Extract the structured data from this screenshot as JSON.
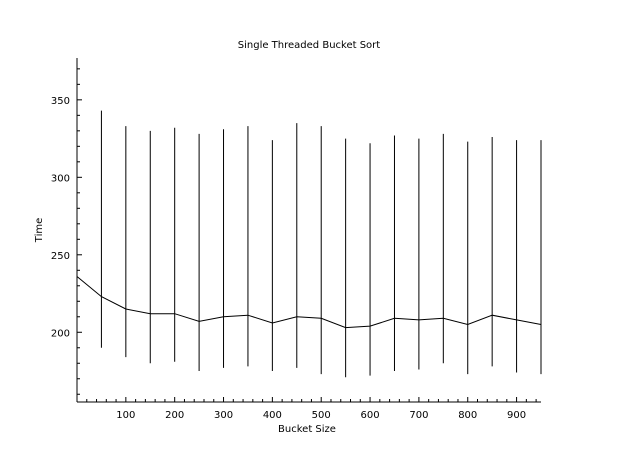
{
  "chart_data": {
    "type": "line",
    "title": "Single Threaded Bucket Sort",
    "xlabel": "Bucket Size",
    "ylabel": "Time",
    "xlim": [
      0,
      950
    ],
    "ylim": [
      155,
      377
    ],
    "xticks": [
      100,
      200,
      300,
      400,
      500,
      600,
      700,
      800,
      900
    ],
    "yticks": [
      200,
      250,
      300,
      350
    ],
    "grid": false,
    "legend": "none",
    "series": [
      {
        "x": [
          0,
          50,
          100,
          150,
          200,
          250,
          300,
          350,
          400,
          450,
          500,
          550,
          600,
          650,
          700,
          750,
          800,
          850,
          900,
          950
        ],
        "y": [
          236,
          223,
          215,
          212,
          212,
          207,
          210,
          211,
          206,
          210,
          209,
          203,
          204,
          209,
          208,
          209,
          205,
          211,
          208,
          205
        ]
      }
    ],
    "error_bars": {
      "x": [
        50,
        100,
        150,
        200,
        250,
        300,
        350,
        400,
        450,
        500,
        550,
        600,
        650,
        700,
        750,
        800,
        850,
        900,
        950
      ],
      "low": [
        190,
        184,
        180,
        181,
        175,
        177,
        178,
        175,
        177,
        173,
        171,
        172,
        175,
        176,
        180,
        173,
        178,
        174,
        173
      ],
      "high": [
        343,
        333,
        330,
        332,
        328,
        331,
        333,
        324,
        335,
        333,
        325,
        322,
        327,
        325,
        328,
        323,
        326,
        324,
        324
      ]
    }
  }
}
